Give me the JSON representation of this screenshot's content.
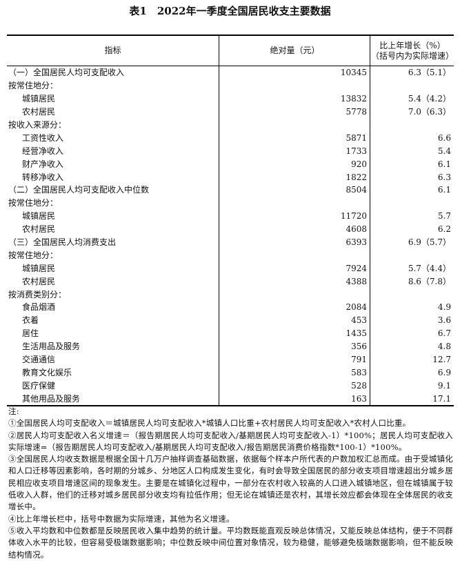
{
  "title": "表1　2022年一季度全国居民收支主要数据",
  "header": {
    "indicator": "指标",
    "absolute": "绝对量（元）",
    "growth_line1": "比上年增长（%）",
    "growth_line2": "（括号内为实际增速）"
  },
  "rows": [
    {
      "label": "（一）全国居民人均可支配收入",
      "level": 0,
      "value": "10345",
      "growth": "6.3（5.1）"
    },
    {
      "label": "按常住地分：",
      "level": 0,
      "value": "",
      "growth": ""
    },
    {
      "label": "城镇居民",
      "level": 1,
      "value": "13832",
      "growth": "5.4（4.2）"
    },
    {
      "label": "农村居民",
      "level": 1,
      "value": "5778",
      "growth": "7.0（6.3）"
    },
    {
      "label": "按收入来源分：",
      "level": 0,
      "value": "",
      "growth": ""
    },
    {
      "label": "工资性收入",
      "level": 1,
      "value": "5871",
      "growth": "6.6"
    },
    {
      "label": "经营净收入",
      "level": 1,
      "value": "1733",
      "growth": "5.4"
    },
    {
      "label": "财产净收入",
      "level": 1,
      "value": "920",
      "growth": "6.1"
    },
    {
      "label": "转移净收入",
      "level": 1,
      "value": "1822",
      "growth": "6.3"
    },
    {
      "label": "（二）全国居民人均可支配收入中位数",
      "level": 0,
      "value": "8504",
      "growth": "6.1"
    },
    {
      "label": "按常住地分：",
      "level": 0,
      "value": "",
      "growth": ""
    },
    {
      "label": "城镇居民",
      "level": 1,
      "value": "11720",
      "growth": "5.7"
    },
    {
      "label": "农村居民",
      "level": 1,
      "value": "4608",
      "growth": "6.2"
    },
    {
      "label": "（三）全国居民人均消费支出",
      "level": 0,
      "value": "6393",
      "growth": "6.9（5.7）"
    },
    {
      "label": "按常住地分：",
      "level": 0,
      "value": "",
      "growth": ""
    },
    {
      "label": "城镇居民",
      "level": 1,
      "value": "7924",
      "growth": "5.7（4.4）"
    },
    {
      "label": "农村居民",
      "level": 1,
      "value": "4388",
      "growth": "8.6（7.8）"
    },
    {
      "label": "按消费类别分：",
      "level": 0,
      "value": "",
      "growth": ""
    },
    {
      "label": "食品烟酒",
      "level": 1,
      "value": "2084",
      "growth": "4.9"
    },
    {
      "label": "衣着",
      "level": 1,
      "value": "453",
      "growth": "3.6"
    },
    {
      "label": "居住",
      "level": 1,
      "value": "1435",
      "growth": "6.7"
    },
    {
      "label": "生活用品及服务",
      "level": 1,
      "value": "356",
      "growth": "4.8"
    },
    {
      "label": "交通通信",
      "level": 1,
      "value": "791",
      "growth": "12.7"
    },
    {
      "label": "教育文化娱乐",
      "level": 1,
      "value": "583",
      "growth": "6.9"
    },
    {
      "label": "医疗保健",
      "level": 1,
      "value": "528",
      "growth": "9.1"
    },
    {
      "label": "其他用品及服务",
      "level": 1,
      "value": "163",
      "growth": "17.1"
    }
  ],
  "notes": [
    "注:",
    "①全国居民人均可支配收入＝城镇居民人均可支配收入*城镇人口比重+农村居民人均可支配收入*农村人口比重。",
    "②居民人均可支配收入名义增速＝（报告期居民人均可支配收入/基期居民人均可支配收入-1）*100%；居民人均可支配收入实际增速=（报告期居民人均可支配收入/基期居民人均可支配收入/报告期居民消费价格指数*100-1）*100%。",
    "③全国居民人均收支数据是根据全国十几万户抽样调查基础数据，依据每个样本户所代表的户数加权汇总而成。由于受城镇化和人口迁移等因素影响，各时期的分城乡、分地区人口构成发生变化，有时会导致全国居民的部分收支项目增速超出分城乡居民相应收支项目增速区间的现象发生。主要是在城镇化过程中，一部分在农村收入较高的人口进入城镇地区，但在城镇属于较低收入人群，他们的迁移对城乡居民部分收支均有拉低作用；但无论在城镇还是农村，其增长效应都会体现在全体居民的收支增长中。",
    "④比上年增长栏中，括号中数据为实际增速，其他为名义增速。",
    "⑤收入平均数和中位数都是反映居民收入集中趋势的统计量。平均数既能直观反映总体情况，又能反映总体结构，便于不同群体收入水平的比较，但容易受极端数据影响；中位数反映中间位置对象情况，较为稳健，能够避免极端数据影响，但不能反映结构情况。"
  ]
}
